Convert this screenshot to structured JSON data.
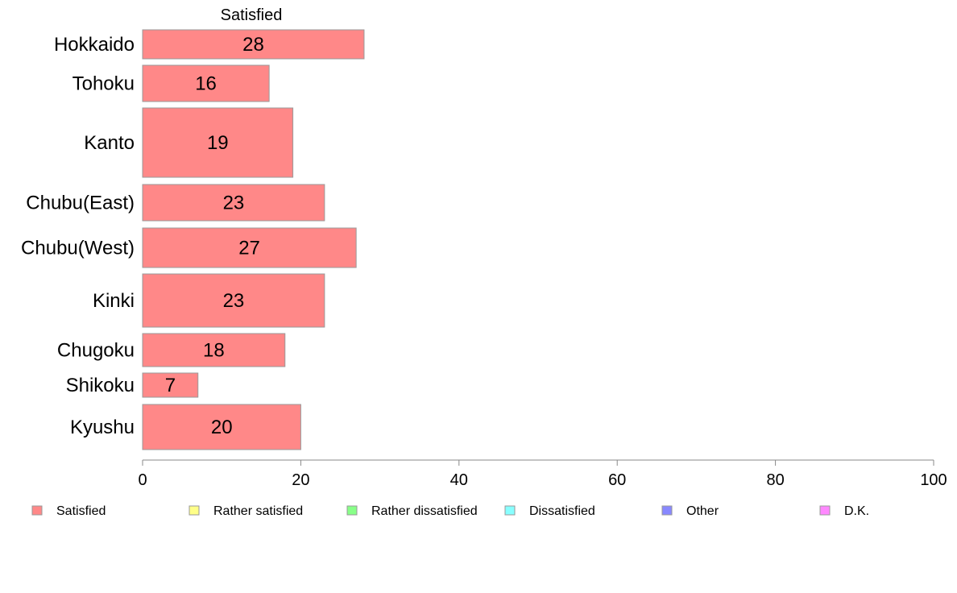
{
  "chart_data": {
    "type": "bar",
    "orientation": "horizontal",
    "column_title": "Satisfied",
    "categories": [
      "Hokkaido",
      "Tohoku",
      "Kanto",
      "Chubu(East)",
      "Chubu(West)",
      "Kinki",
      "Chugoku",
      "Shikoku",
      "Kyushu"
    ],
    "series": [
      {
        "name": "Satisfied",
        "values": [
          28,
          16,
          19,
          23,
          27,
          23,
          18,
          7,
          20
        ],
        "color": "#ff8888"
      }
    ],
    "bar_value_labels": [
      "28",
      "16",
      "19",
      "23",
      "27",
      "23",
      "18",
      "7",
      "20"
    ],
    "xlim": [
      0,
      100
    ],
    "x_ticks": [
      0,
      20,
      40,
      60,
      80,
      100
    ],
    "grid": false,
    "legend_position": "bottom",
    "legend": [
      {
        "name": "Satisfied",
        "color": "#ff8888"
      },
      {
        "name": "Rather satisfied",
        "color": "#ffff88"
      },
      {
        "name": "Rather dissatisfied",
        "color": "#88ff88"
      },
      {
        "name": "Dissatisfied",
        "color": "#88ffff"
      },
      {
        "name": "Other",
        "color": "#8888ff"
      },
      {
        "name": "D.K.",
        "color": "#ff88ff"
      }
    ],
    "bar_stroke_color": "#999999",
    "axis_color": "#888888"
  }
}
